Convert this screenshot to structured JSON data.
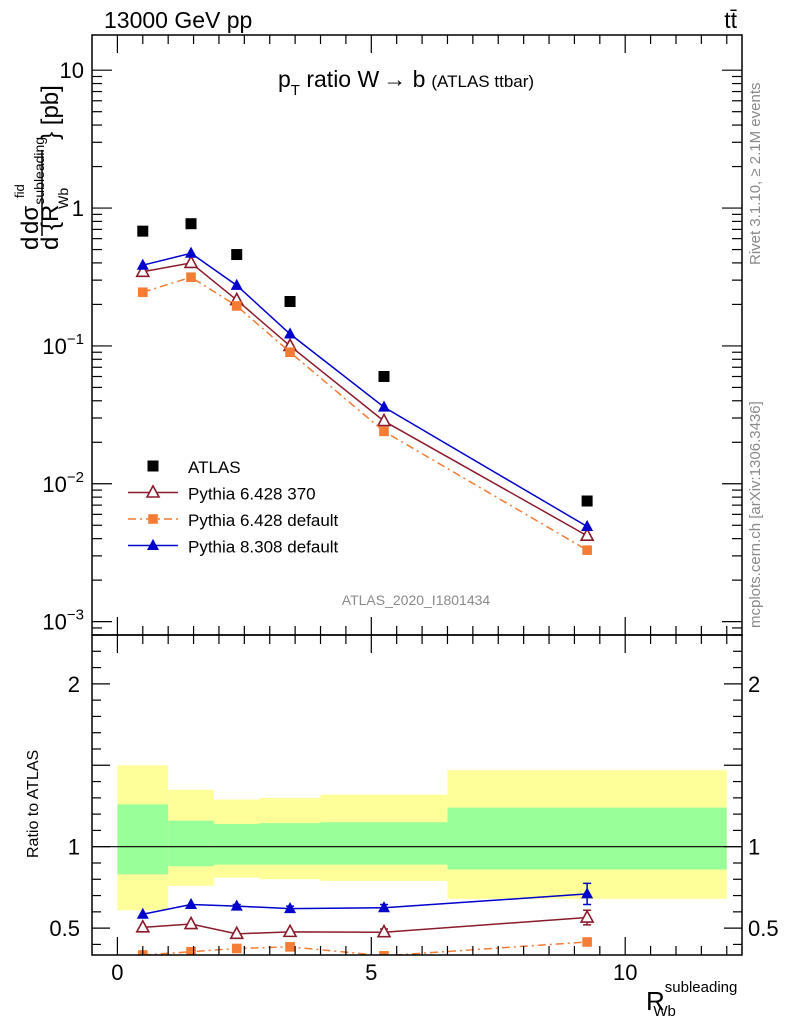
{
  "header": {
    "left": "13000 GeV pp",
    "right": "tt̄"
  },
  "side": {
    "rivet": "Rivet 3.1.10, ≥ 2.1M events",
    "mcplots": "mcplots.cern.ch [arXiv:1306.3436]"
  },
  "chart_data": {
    "type": "scatter",
    "title": "p_T ratio W → b (ATLAS ttbar)",
    "title_parts": {
      "p": "p",
      "sub": "T",
      "rest": " ratio W",
      "arrow": "→",
      "b": " b",
      "paren": "(ATLAS ttbar)"
    },
    "analysis": "ATLAS_2020_I1801434",
    "ylabel_parts": {
      "d": "d",
      "sigma": "dσ",
      "fid": "fid",
      "den": "d {R",
      "sup": "subleading",
      "sub": "Wb",
      "close": "} [pb]"
    },
    "xlabel_parts": {
      "main": "R",
      "sup": "subleading",
      "sub": "Wb"
    },
    "ratio_ylabel": "Ratio to ATLAS",
    "xlim": [
      -0.5,
      12.3
    ],
    "ylim": [
      0.0008,
      18
    ],
    "ylog": true,
    "ratio_ylim": [
      0.335,
      2.3
    ],
    "x_ticks": [
      0,
      5,
      10
    ],
    "x_tick_labels": [
      "0",
      "5",
      "10"
    ],
    "y_ticks": [
      10,
      1,
      0.1,
      0.01,
      0.001
    ],
    "y_tick_labels": [
      {
        "base": "10",
        "exp": ""
      },
      {
        "base": "1",
        "exp": ""
      },
      {
        "base": "10",
        "exp": "−1"
      },
      {
        "base": "10",
        "exp": "−2"
      },
      {
        "base": "10",
        "exp": "−3"
      }
    ],
    "ratio_ticks": [
      2,
      1,
      0.5
    ],
    "ratio_tick_labels": [
      "2",
      "1",
      "0.5"
    ],
    "legend_position": "bottom-left",
    "bins": [
      {
        "lo": 0.0,
        "hi": 1.0
      },
      {
        "lo": 1.0,
        "hi": 1.9
      },
      {
        "lo": 1.9,
        "hi": 2.8
      },
      {
        "lo": 2.8,
        "hi": 4.0
      },
      {
        "lo": 4.0,
        "hi": 6.5
      },
      {
        "lo": 6.5,
        "hi": 12.0
      }
    ],
    "x": [
      0.5,
      1.45,
      2.35,
      3.4,
      5.25,
      9.25
    ],
    "series": [
      {
        "name": "ATLAS",
        "role": "data",
        "color": "#000000",
        "marker": "square",
        "values": [
          0.68,
          0.77,
          0.46,
          0.21,
          0.06,
          0.0075
        ]
      },
      {
        "name": "Pythia 6.428 370",
        "color": "#8b1a2b",
        "marker": "open-triangle",
        "dash": "",
        "values": [
          0.345,
          0.4,
          0.215,
          0.1,
          0.0285,
          0.0042
        ],
        "ratio": [
          0.505,
          0.525,
          0.465,
          0.477,
          0.475,
          0.565
        ],
        "ratio_err": [
          0.0,
          0.0,
          0.0,
          0.0,
          0.02,
          0.045
        ]
      },
      {
        "name": "Pythia 6.428 default",
        "color": "#f47c34",
        "marker": "filled-square",
        "dash": "8,4,2,4",
        "values": [
          0.245,
          0.315,
          0.195,
          0.09,
          0.024,
          0.0033
        ],
        "ratio": [
          0.335,
          0.355,
          0.375,
          0.385,
          0.33,
          0.415
        ],
        "ratio_err": [
          0.0,
          0.0,
          0.0,
          0.01,
          0.0,
          0.0
        ]
      },
      {
        "name": "Pythia 8.308 default",
        "color": "#0000cd",
        "marker": "filled-triangle",
        "dash": "",
        "values": [
          0.385,
          0.47,
          0.275,
          0.122,
          0.036,
          0.0049
        ],
        "ratio": [
          0.585,
          0.645,
          0.635,
          0.62,
          0.625,
          0.71
        ],
        "ratio_err": [
          0.0,
          0.0,
          0.01,
          0.015,
          0.02,
          0.065
        ]
      }
    ],
    "band_inner": [
      {
        "lo": 0.83,
        "hi": 1.26
      },
      {
        "lo": 0.88,
        "hi": 1.16
      },
      {
        "lo": 0.89,
        "hi": 1.14
      },
      {
        "lo": 0.89,
        "hi": 1.145
      },
      {
        "lo": 0.89,
        "hi": 1.15
      },
      {
        "lo": 0.86,
        "hi": 1.24
      }
    ],
    "band_outer": [
      {
        "lo": 0.61,
        "hi": 1.5
      },
      {
        "lo": 0.76,
        "hi": 1.35
      },
      {
        "lo": 0.81,
        "hi": 1.29
      },
      {
        "lo": 0.8,
        "hi": 1.3
      },
      {
        "lo": 0.79,
        "hi": 1.32
      },
      {
        "lo": 0.68,
        "hi": 1.47
      }
    ]
  }
}
